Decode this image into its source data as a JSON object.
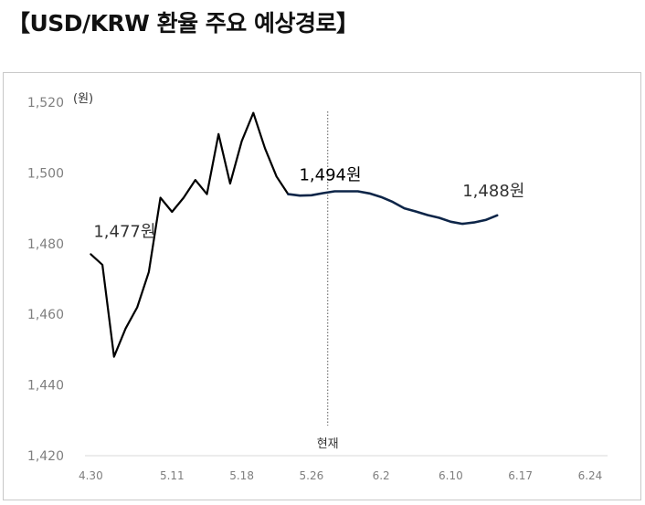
{
  "title": "【USD/KRW 환율 주요 예상경로】",
  "chart_data": {
    "type": "line",
    "title": "【USD/KRW 환율 주요 예상경로】",
    "ylabel": "(원)",
    "ylim": [
      1420,
      1520
    ],
    "yticks": [
      1420,
      1440,
      1460,
      1480,
      1500,
      1520
    ],
    "ytick_labels": [
      "1,420",
      "1,440",
      "1,460",
      "1,480",
      "1,500",
      "1,520"
    ],
    "xtick_labels": [
      "4.30",
      "5.11",
      "5.18",
      "5.26",
      "6.2",
      "6.10",
      "6.17",
      "6.24"
    ],
    "xtick_index": [
      0,
      7,
      13,
      19,
      25,
      31,
      37,
      43
    ],
    "xlim": [
      -0.5,
      44.5
    ],
    "grid": false,
    "legend": "none",
    "now_index": 20.4,
    "now_label": "현재",
    "series": [
      {
        "color": "#000000",
        "points": [
          [
            0,
            1477
          ],
          [
            1,
            1474
          ],
          [
            2,
            1448
          ],
          [
            3,
            1456
          ],
          [
            4,
            1462
          ],
          [
            5,
            1472
          ],
          [
            6,
            1493
          ],
          [
            7,
            1489
          ],
          [
            8,
            1493
          ],
          [
            9,
            1498
          ],
          [
            10,
            1494
          ],
          [
            11,
            1511
          ],
          [
            12,
            1497
          ],
          [
            13,
            1509
          ],
          [
            14,
            1517
          ],
          [
            15,
            1507
          ],
          [
            16,
            1499
          ],
          [
            17,
            1494
          ]
        ]
      },
      {
        "color": "#0d2548",
        "points": [
          [
            17,
            1494
          ],
          [
            18,
            1493.6
          ],
          [
            19,
            1493.7
          ],
          [
            20,
            1494.3
          ],
          [
            21,
            1494.8
          ],
          [
            22,
            1494.8
          ],
          [
            23,
            1494.8
          ],
          [
            24,
            1494.2
          ],
          [
            25,
            1493.2
          ],
          [
            26,
            1491.8
          ],
          [
            27,
            1490
          ],
          [
            28,
            1489.1
          ],
          [
            29,
            1488.1
          ],
          [
            30,
            1487.3
          ],
          [
            31,
            1486.2
          ],
          [
            32,
            1485.6
          ],
          [
            33,
            1486
          ],
          [
            34,
            1486.7
          ],
          [
            35,
            1488
          ]
        ]
      }
    ],
    "annotations": [
      {
        "text": "1,477원",
        "index": 0,
        "value": 1477,
        "color": "#333333"
      },
      {
        "text": "1,494원",
        "index": 17,
        "value": 1494,
        "color": "#000000"
      },
      {
        "text": "1,488원",
        "index": 35,
        "value": 1488,
        "color": "#333333"
      }
    ]
  }
}
